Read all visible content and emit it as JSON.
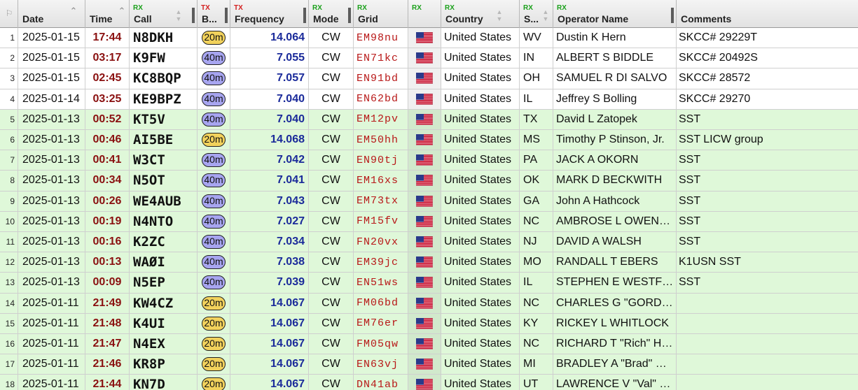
{
  "headers": {
    "date": "Date",
    "time": "Time",
    "call": "Call",
    "band": "B...",
    "frequency": "Frequency",
    "mode": "Mode",
    "grid": "Grid",
    "flag": "",
    "country": "Country",
    "state": "S...",
    "operator": "Operator Name",
    "comments": "Comments",
    "rx_tag": "RX",
    "tx_tag": "TX"
  },
  "colors": {
    "band_20m": "#f2d25c",
    "band_40m": "#a7a5f0",
    "row_rx": "#dff8d9",
    "row_tx": "#ffffff"
  },
  "rows": [
    {
      "idx": "1",
      "date": "2025-01-15",
      "time": "17:44",
      "call": "N8DKH",
      "band": "20m",
      "freq": "14.064",
      "mode": "CW",
      "grid": "EM98nu",
      "flag": "us-flag-icon",
      "country": "United States",
      "state": "WV",
      "op": "Dustin K Hern",
      "comments": "SKCC# 29229T",
      "dir": "tx"
    },
    {
      "idx": "2",
      "date": "2025-01-15",
      "time": "03:17",
      "call": "K9FW",
      "band": "40m",
      "freq": "7.055",
      "mode": "CW",
      "grid": "EN71kc",
      "flag": "us-flag-icon",
      "country": "United States",
      "state": "IN",
      "op": "ALBERT S BIDDLE",
      "comments": "SKCC# 20492S",
      "dir": "tx"
    },
    {
      "idx": "3",
      "date": "2025-01-15",
      "time": "02:45",
      "call": "KC8BQP",
      "band": "40m",
      "freq": "7.057",
      "mode": "CW",
      "grid": "EN91bd",
      "flag": "us-flag-icon",
      "country": "United States",
      "state": "OH",
      "op": "SAMUEL R DI SALVO",
      "comments": "SKCC# 28572",
      "dir": "tx"
    },
    {
      "idx": "4",
      "date": "2025-01-14",
      "time": "03:25",
      "call": "KE9BPZ",
      "band": "40m",
      "freq": "7.040",
      "mode": "CW",
      "grid": "EN62bd",
      "flag": "us-flag-icon",
      "country": "United States",
      "state": "IL",
      "op": "Jeffrey S Bolling",
      "comments": "SKCC# 29270",
      "dir": "tx"
    },
    {
      "idx": "5",
      "date": "2025-01-13",
      "time": "00:52",
      "call": "KT5V",
      "band": "40m",
      "freq": "7.040",
      "mode": "CW",
      "grid": "EM12pv",
      "flag": "us-flag-icon",
      "country": "United States",
      "state": "TX",
      "op": "David L Zatopek",
      "comments": "SST",
      "dir": "rx"
    },
    {
      "idx": "6",
      "date": "2025-01-13",
      "time": "00:46",
      "call": "AI5BE",
      "band": "20m",
      "freq": "14.068",
      "mode": "CW",
      "grid": "EM50hh",
      "flag": "us-flag-icon",
      "country": "United States",
      "state": "MS",
      "op": "Timothy P Stinson, Jr.",
      "comments": "SST LICW group",
      "dir": "rx"
    },
    {
      "idx": "7",
      "date": "2025-01-13",
      "time": "00:41",
      "call": "W3CT",
      "band": "40m",
      "freq": "7.042",
      "mode": "CW",
      "grid": "EN90tj",
      "flag": "us-flag-icon",
      "country": "United States",
      "state": "PA",
      "op": "JACK A OKORN",
      "comments": "SST",
      "dir": "rx"
    },
    {
      "idx": "8",
      "date": "2025-01-13",
      "time": "00:34",
      "call": "N5OT",
      "band": "40m",
      "freq": "7.041",
      "mode": "CW",
      "grid": "EM16xs",
      "flag": "us-flag-icon",
      "country": "United States",
      "state": "OK",
      "op": "MARK D BECKWITH",
      "comments": "SST",
      "dir": "rx"
    },
    {
      "idx": "9",
      "date": "2025-01-13",
      "time": "00:26",
      "call": "WE4AUB",
      "band": "40m",
      "freq": "7.043",
      "mode": "CW",
      "grid": "EM73tx",
      "flag": "us-flag-icon",
      "country": "United States",
      "state": "GA",
      "op": "John A Hathcock",
      "comments": "SST",
      "dir": "rx"
    },
    {
      "idx": "10",
      "date": "2025-01-13",
      "time": "00:19",
      "call": "N4NTO",
      "band": "40m",
      "freq": "7.027",
      "mode": "CW",
      "grid": "FM15fv",
      "flag": "us-flag-icon",
      "country": "United States",
      "state": "NC",
      "op": "AMBROSE L OWEN…",
      "comments": "SST",
      "dir": "rx"
    },
    {
      "idx": "11",
      "date": "2025-01-13",
      "time": "00:16",
      "call": "K2ZC",
      "band": "40m",
      "freq": "7.034",
      "mode": "CW",
      "grid": "FN20vx",
      "flag": "us-flag-icon",
      "country": "United States",
      "state": "NJ",
      "op": "DAVID A WALSH",
      "comments": "SST",
      "dir": "rx"
    },
    {
      "idx": "12",
      "date": "2025-01-13",
      "time": "00:13",
      "call": "WAØI",
      "band": "40m",
      "freq": "7.038",
      "mode": "CW",
      "grid": "EM39jc",
      "flag": "us-flag-icon",
      "country": "United States",
      "state": "MO",
      "op": "RANDALL T EBERS",
      "comments": "K1USN SST",
      "dir": "rx"
    },
    {
      "idx": "13",
      "date": "2025-01-13",
      "time": "00:09",
      "call": "N5EP",
      "band": "40m",
      "freq": "7.039",
      "mode": "CW",
      "grid": "EN51ws",
      "flag": "us-flag-icon",
      "country": "United States",
      "state": "IL",
      "op": "STEPHEN E WESTF…",
      "comments": "SST",
      "dir": "rx"
    },
    {
      "idx": "14",
      "date": "2025-01-11",
      "time": "21:49",
      "call": "KW4CZ",
      "band": "20m",
      "freq": "14.067",
      "mode": "CW",
      "grid": "FM06bd",
      "flag": "us-flag-icon",
      "country": "United States",
      "state": "NC",
      "op": "CHARLES G \"GORD…",
      "comments": "",
      "dir": "rx"
    },
    {
      "idx": "15",
      "date": "2025-01-11",
      "time": "21:48",
      "call": "K4UI",
      "band": "20m",
      "freq": "14.067",
      "mode": "CW",
      "grid": "EM76er",
      "flag": "us-flag-icon",
      "country": "United States",
      "state": "KY",
      "op": "RICKEY L WHITLOCK",
      "comments": "",
      "dir": "rx"
    },
    {
      "idx": "16",
      "date": "2025-01-11",
      "time": "21:47",
      "call": "N4EX",
      "band": "20m",
      "freq": "14.067",
      "mode": "CW",
      "grid": "FM05qw",
      "flag": "us-flag-icon",
      "country": "United States",
      "state": "NC",
      "op": "RICHARD T \"Rich\" H…",
      "comments": "",
      "dir": "rx"
    },
    {
      "idx": "17",
      "date": "2025-01-11",
      "time": "21:46",
      "call": "KR8P",
      "band": "20m",
      "freq": "14.067",
      "mode": "CW",
      "grid": "EN63vj",
      "flag": "us-flag-icon",
      "country": "United States",
      "state": "MI",
      "op": "BRADLEY A \"Brad\" …",
      "comments": "",
      "dir": "rx"
    },
    {
      "idx": "18",
      "date": "2025-01-11",
      "time": "21:44",
      "call": "KN7D",
      "band": "20m",
      "freq": "14.067",
      "mode": "CW",
      "grid": "DN41ab",
      "flag": "us-flag-icon",
      "country": "United States",
      "state": "UT",
      "op": "LAWRENCE V \"Val\" …",
      "comments": "",
      "dir": "rx"
    }
  ]
}
